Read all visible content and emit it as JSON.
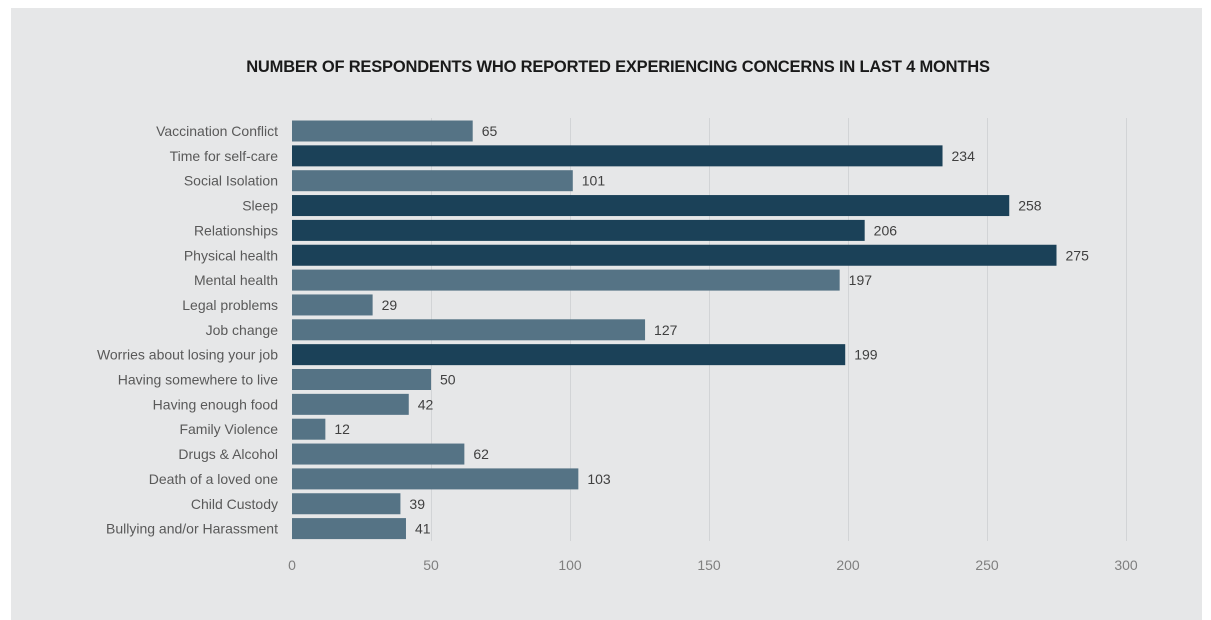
{
  "chart_data": {
    "type": "bar",
    "orientation": "horizontal",
    "title": "NUMBER OF RESPONDENTS WHO REPORTED EXPERIENCING CONCERNS IN LAST 4 MONTHS",
    "xlabel": "",
    "ylabel": "",
    "xlim": [
      0,
      300
    ],
    "xticks": [
      0,
      50,
      100,
      150,
      200,
      250,
      300
    ],
    "grid": "vertical",
    "legend": "none",
    "categories": [
      "Vaccination Conflict",
      "Time for self-care",
      "Social Isolation",
      "Sleep",
      "Relationships",
      "Physical health",
      "Mental health",
      "Legal problems",
      "Job change",
      "Worries about losing your job",
      "Having somewhere to live",
      "Having enough food",
      "Family Violence",
      "Drugs & Alcohol",
      "Death of a loved one",
      "Child Custody",
      "Bullying and/or Harassment"
    ],
    "values": [
      65,
      234,
      101,
      258,
      206,
      275,
      197,
      29,
      127,
      199,
      50,
      42,
      12,
      62,
      103,
      39,
      41
    ],
    "highlighted": [
      false,
      true,
      false,
      true,
      true,
      true,
      false,
      false,
      false,
      true,
      false,
      false,
      false,
      false,
      false,
      false,
      false
    ]
  },
  "colors": {
    "background": "#e6e7e8",
    "bar_default": "#557385",
    "bar_highlight": "#1b4158",
    "grid": "#d2d4d6"
  }
}
